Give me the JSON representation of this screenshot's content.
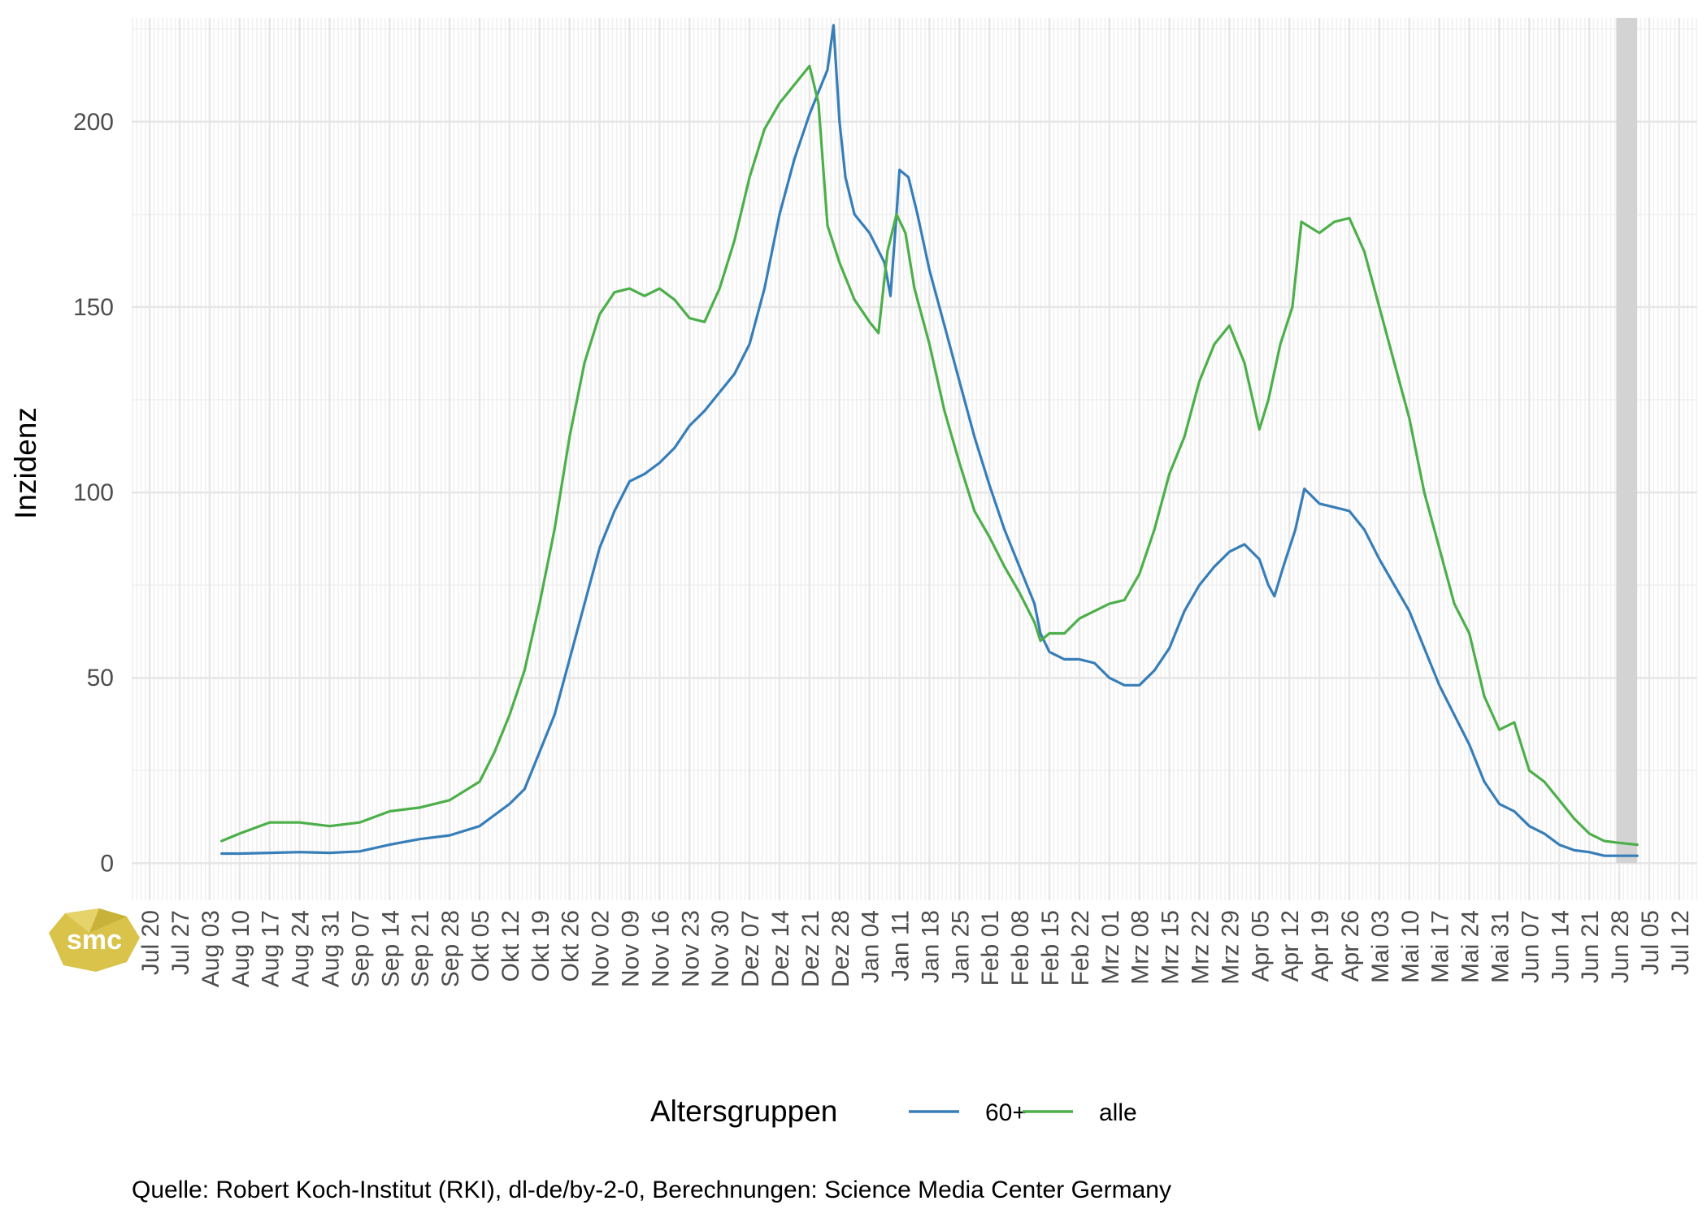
{
  "chart_data": {
    "type": "line",
    "title": "",
    "xlabel": "",
    "ylabel": "Inzidenz",
    "ylim": [
      -10,
      228
    ],
    "yticks": [
      0,
      50,
      100,
      150,
      200
    ],
    "grid": true,
    "x_tick_labels": [
      "Jul 20",
      "Jul 27",
      "Aug 03",
      "Aug 10",
      "Aug 17",
      "Aug 24",
      "Aug 31",
      "Sep 07",
      "Sep 14",
      "Sep 21",
      "Sep 28",
      "Okt 05",
      "Okt 12",
      "Okt 19",
      "Okt 26",
      "Nov 02",
      "Nov 09",
      "Nov 16",
      "Nov 23",
      "Nov 30",
      "Dez 07",
      "Dez 14",
      "Dez 21",
      "Dez 28",
      "Jan 04",
      "Jan 11",
      "Jan 18",
      "Jan 25",
      "Feb 01",
      "Feb 08",
      "Feb 15",
      "Feb 22",
      "Mrz 01",
      "Mrz 08",
      "Mrz 15",
      "Mrz 22",
      "Mrz 29",
      "Apr 05",
      "Apr 12",
      "Apr 19",
      "Apr 26",
      "Mai 03",
      "Mai 10",
      "Mai 17",
      "Mai 24",
      "Mai 31",
      "Jun 07",
      "Jun 14",
      "Jun 21",
      "Jun 28",
      "Jul 05",
      "Jul 12"
    ],
    "x_tick_weeks": [
      0,
      1,
      2,
      3,
      4,
      5,
      6,
      7,
      8,
      9,
      10,
      11,
      12,
      13,
      14,
      15,
      16,
      17,
      18,
      19,
      20,
      21,
      22,
      23,
      24,
      25,
      26,
      27,
      28,
      29,
      30,
      31,
      32,
      33,
      34,
      35,
      36,
      37,
      38,
      39,
      40,
      41,
      42,
      43,
      44,
      45,
      46,
      47,
      48,
      49,
      50,
      51
    ],
    "x_range_weeks": [
      -0.6,
      51.6
    ],
    "highlight_band_weeks": [
      48.9,
      49.6
    ],
    "highlight_color": "#d3d3d3",
    "legend": {
      "title": "Altersgruppen",
      "position": "bottom"
    },
    "x_unit": "weeks from Jul 20",
    "series": [
      {
        "name": "60+",
        "color": "#377eb8",
        "points": [
          [
            2.4,
            2.6
          ],
          [
            3,
            2.6
          ],
          [
            4,
            2.8
          ],
          [
            5,
            3
          ],
          [
            6,
            2.8
          ],
          [
            7,
            3.2
          ],
          [
            8,
            5
          ],
          [
            9,
            6.5
          ],
          [
            10,
            7.5
          ],
          [
            11,
            10
          ],
          [
            12,
            16
          ],
          [
            12.5,
            20
          ],
          [
            13,
            30
          ],
          [
            13.5,
            40
          ],
          [
            14,
            55
          ],
          [
            14.5,
            70
          ],
          [
            15,
            85
          ],
          [
            15.5,
            95
          ],
          [
            16,
            103
          ],
          [
            16.5,
            105
          ],
          [
            17,
            108
          ],
          [
            17.5,
            112
          ],
          [
            18,
            118
          ],
          [
            18.5,
            122
          ],
          [
            19,
            127
          ],
          [
            19.5,
            132
          ],
          [
            20,
            140
          ],
          [
            20.5,
            155
          ],
          [
            21,
            175
          ],
          [
            21.5,
            190
          ],
          [
            22,
            202
          ],
          [
            22.3,
            208
          ],
          [
            22.6,
            214
          ],
          [
            22.8,
            226
          ],
          [
            23,
            200
          ],
          [
            23.2,
            185
          ],
          [
            23.5,
            175
          ],
          [
            24,
            170
          ],
          [
            24.5,
            162
          ],
          [
            24.7,
            153
          ],
          [
            24.9,
            175
          ],
          [
            25,
            187
          ],
          [
            25.3,
            185
          ],
          [
            25.6,
            175
          ],
          [
            26,
            160
          ],
          [
            26.5,
            145
          ],
          [
            27,
            130
          ],
          [
            27.5,
            115
          ],
          [
            28,
            102
          ],
          [
            28.5,
            90
          ],
          [
            29,
            80
          ],
          [
            29.5,
            70
          ],
          [
            29.7,
            62
          ],
          [
            30,
            57
          ],
          [
            30.5,
            55
          ],
          [
            31,
            55
          ],
          [
            31.5,
            54
          ],
          [
            32,
            50
          ],
          [
            32.5,
            48
          ],
          [
            33,
            48
          ],
          [
            33.5,
            52
          ],
          [
            34,
            58
          ],
          [
            34.5,
            68
          ],
          [
            35,
            75
          ],
          [
            35.5,
            80
          ],
          [
            36,
            84
          ],
          [
            36.5,
            86
          ],
          [
            37,
            82
          ],
          [
            37.3,
            75
          ],
          [
            37.5,
            72
          ],
          [
            37.8,
            80
          ],
          [
            38.2,
            90
          ],
          [
            38.5,
            101
          ],
          [
            39,
            97
          ],
          [
            39.5,
            96
          ],
          [
            40,
            95
          ],
          [
            40.5,
            90
          ],
          [
            41,
            82
          ],
          [
            41.5,
            75
          ],
          [
            42,
            68
          ],
          [
            42.5,
            58
          ],
          [
            43,
            48
          ],
          [
            43.5,
            40
          ],
          [
            44,
            32
          ],
          [
            44.5,
            22
          ],
          [
            45,
            16
          ],
          [
            45.5,
            14
          ],
          [
            46,
            10
          ],
          [
            46.5,
            8
          ],
          [
            47,
            5
          ],
          [
            47.5,
            3.5
          ],
          [
            48,
            3
          ],
          [
            48.5,
            2
          ],
          [
            49,
            2
          ],
          [
            49.6,
            2
          ]
        ]
      },
      {
        "name": "alle",
        "color": "#4daf4a",
        "points": [
          [
            2.4,
            6
          ],
          [
            3,
            8
          ],
          [
            4,
            11
          ],
          [
            5,
            11
          ],
          [
            6,
            10
          ],
          [
            7,
            11
          ],
          [
            8,
            14
          ],
          [
            9,
            15
          ],
          [
            10,
            17
          ],
          [
            11,
            22
          ],
          [
            11.5,
            30
          ],
          [
            12,
            40
          ],
          [
            12.5,
            52
          ],
          [
            13,
            70
          ],
          [
            13.5,
            90
          ],
          [
            14,
            115
          ],
          [
            14.5,
            135
          ],
          [
            15,
            148
          ],
          [
            15.5,
            154
          ],
          [
            16,
            155
          ],
          [
            16.5,
            153
          ],
          [
            17,
            155
          ],
          [
            17.5,
            152
          ],
          [
            18,
            147
          ],
          [
            18.5,
            146
          ],
          [
            19,
            155
          ],
          [
            19.5,
            168
          ],
          [
            20,
            185
          ],
          [
            20.5,
            198
          ],
          [
            21,
            205
          ],
          [
            21.5,
            210
          ],
          [
            22,
            215
          ],
          [
            22.3,
            205
          ],
          [
            22.6,
            172
          ],
          [
            23,
            162
          ],
          [
            23.5,
            152
          ],
          [
            24,
            146
          ],
          [
            24.3,
            143
          ],
          [
            24.6,
            165
          ],
          [
            24.9,
            175
          ],
          [
            25.2,
            170
          ],
          [
            25.5,
            155
          ],
          [
            26,
            140
          ],
          [
            26.5,
            122
          ],
          [
            27,
            108
          ],
          [
            27.5,
            95
          ],
          [
            28,
            88
          ],
          [
            28.5,
            80
          ],
          [
            29,
            73
          ],
          [
            29.5,
            65
          ],
          [
            29.7,
            60
          ],
          [
            30,
            62
          ],
          [
            30.5,
            62
          ],
          [
            31,
            66
          ],
          [
            31.5,
            68
          ],
          [
            32,
            70
          ],
          [
            32.5,
            71
          ],
          [
            33,
            78
          ],
          [
            33.5,
            90
          ],
          [
            34,
            105
          ],
          [
            34.5,
            115
          ],
          [
            35,
            130
          ],
          [
            35.5,
            140
          ],
          [
            36,
            145
          ],
          [
            36.5,
            135
          ],
          [
            37,
            117
          ],
          [
            37.3,
            125
          ],
          [
            37.7,
            140
          ],
          [
            38.1,
            150
          ],
          [
            38.4,
            173
          ],
          [
            39,
            170
          ],
          [
            39.5,
            173
          ],
          [
            40,
            174
          ],
          [
            40.5,
            165
          ],
          [
            41,
            150
          ],
          [
            41.5,
            135
          ],
          [
            42,
            120
          ],
          [
            42.5,
            100
          ],
          [
            43,
            85
          ],
          [
            43.5,
            70
          ],
          [
            44,
            62
          ],
          [
            44.5,
            45
          ],
          [
            45,
            36
          ],
          [
            45.5,
            38
          ],
          [
            46,
            25
          ],
          [
            46.5,
            22
          ],
          [
            47,
            17
          ],
          [
            47.5,
            12
          ],
          [
            48,
            8
          ],
          [
            48.5,
            6
          ],
          [
            49,
            5.5
          ],
          [
            49.6,
            5
          ]
        ]
      }
    ]
  },
  "caption": "Quelle: Robert Koch-Institut (RKI), dl-de/by-2-0, Berechnungen: Science Media Center Germany",
  "logo": {
    "text": "smc",
    "color": "#d9c34a"
  }
}
